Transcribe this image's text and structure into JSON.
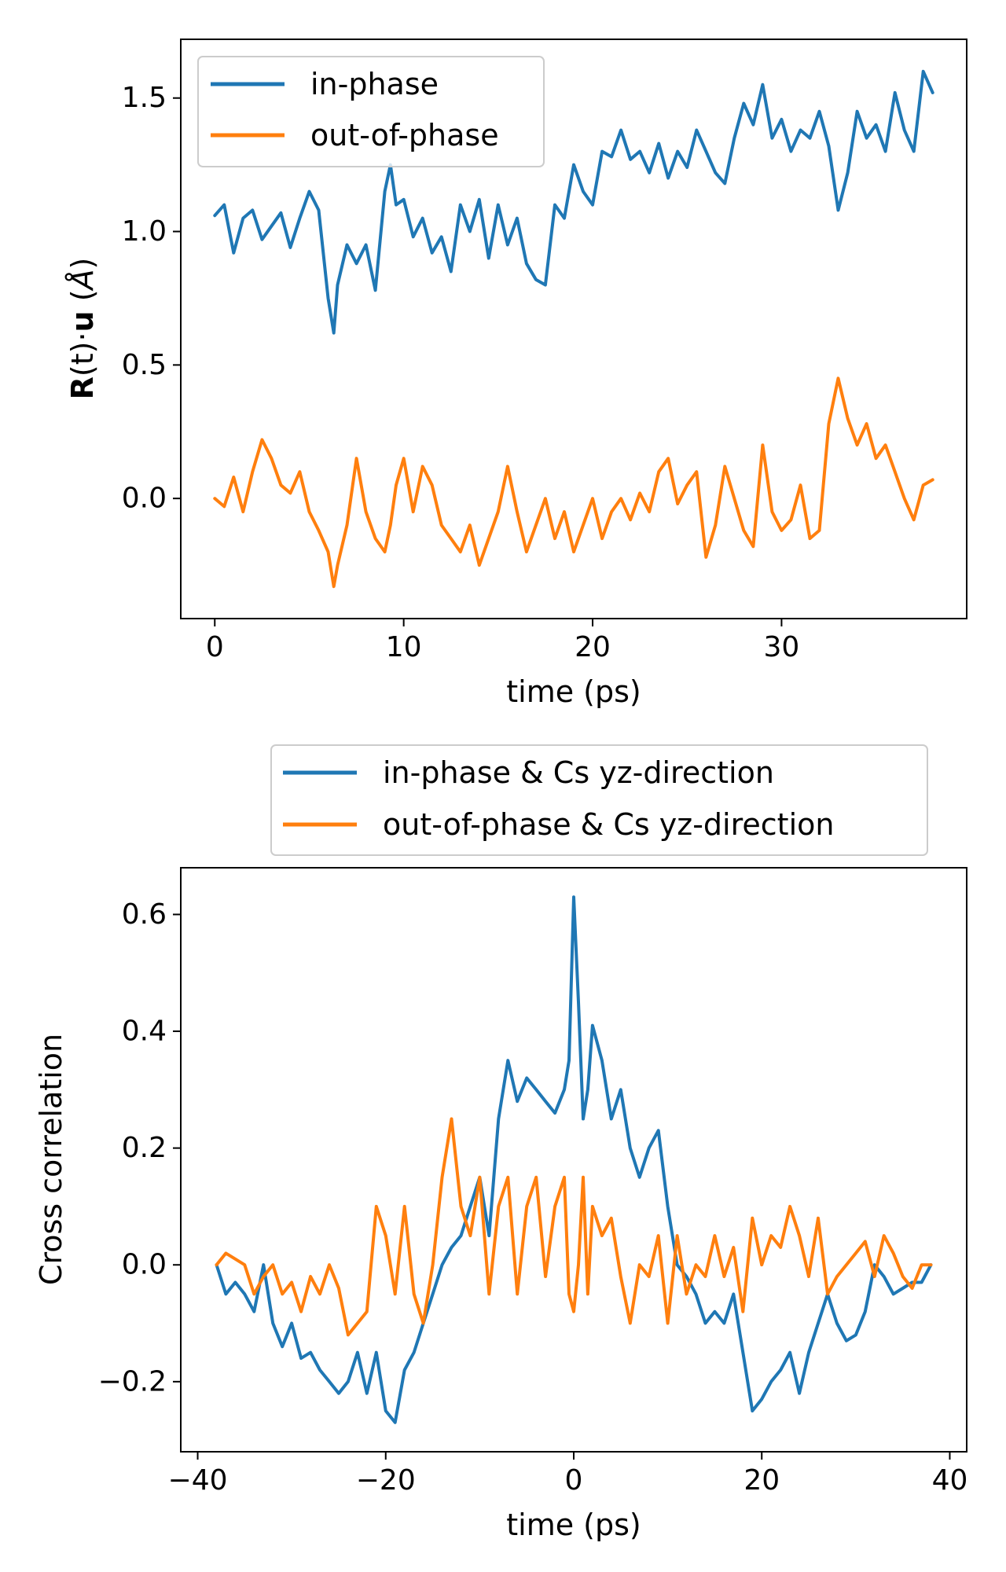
{
  "colors": {
    "in_phase": "#1f77b4",
    "out_of_phase": "#ff7f0e",
    "axes": "#000000",
    "legend_border": "#cccccc"
  },
  "chart_data": [
    {
      "type": "line",
      "title": "",
      "xlabel": "time (ps)",
      "ylabel_parts": [
        "R",
        "(t)·",
        "u",
        " (",
        "Å",
        ")"
      ],
      "xlim": [
        -1.8,
        39.8
      ],
      "ylim": [
        -0.45,
        1.72
      ],
      "xticks": [
        0,
        10,
        20,
        30
      ],
      "xtick_labels": [
        "0",
        "10",
        "20",
        "30"
      ],
      "yticks": [
        0.0,
        0.5,
        1.0,
        1.5
      ],
      "ytick_labels": [
        "0.0",
        "0.5",
        "1.0",
        "1.5"
      ],
      "grid": false,
      "legend_position": "top-left",
      "series": [
        {
          "name": "in-phase",
          "color_key": "in_phase",
          "x": [
            0,
            0.5,
            1,
            1.5,
            2,
            2.5,
            3,
            3.5,
            4,
            4.5,
            5,
            5.5,
            6,
            6.3,
            6.5,
            7,
            7.5,
            8,
            8.5,
            9,
            9.3,
            9.6,
            10,
            10.5,
            11,
            11.5,
            12,
            12.5,
            13,
            13.5,
            14,
            14.5,
            15,
            15.5,
            16,
            16.5,
            17,
            17.5,
            18,
            18.5,
            19,
            19.5,
            20,
            20.5,
            21,
            21.5,
            22,
            22.5,
            23,
            23.5,
            24,
            24.5,
            25,
            25.5,
            26,
            26.5,
            27,
            27.5,
            28,
            28.5,
            29,
            29.5,
            30,
            30.5,
            31,
            31.5,
            32,
            32.5,
            33,
            33.5,
            34,
            34.5,
            35,
            35.5,
            36,
            36.5,
            37,
            37.5,
            38
          ],
          "y": [
            1.06,
            1.1,
            0.92,
            1.05,
            1.08,
            0.97,
            1.02,
            1.07,
            0.94,
            1.05,
            1.15,
            1.08,
            0.75,
            0.62,
            0.8,
            0.95,
            0.88,
            0.95,
            0.78,
            1.15,
            1.25,
            1.1,
            1.12,
            0.98,
            1.05,
            0.92,
            0.98,
            0.85,
            1.1,
            1.0,
            1.12,
            0.9,
            1.1,
            0.95,
            1.05,
            0.88,
            0.82,
            0.8,
            1.1,
            1.05,
            1.25,
            1.15,
            1.1,
            1.3,
            1.28,
            1.38,
            1.27,
            1.3,
            1.22,
            1.33,
            1.2,
            1.3,
            1.24,
            1.38,
            1.3,
            1.22,
            1.18,
            1.35,
            1.48,
            1.4,
            1.55,
            1.35,
            1.42,
            1.3,
            1.38,
            1.35,
            1.45,
            1.32,
            1.08,
            1.22,
            1.45,
            1.35,
            1.4,
            1.3,
            1.52,
            1.38,
            1.3,
            1.6,
            1.52
          ]
        },
        {
          "name": "out-of-phase",
          "color_key": "out_of_phase",
          "x": [
            0,
            0.5,
            1,
            1.5,
            2,
            2.5,
            3,
            3.5,
            4,
            4.5,
            5,
            5.5,
            6,
            6.3,
            6.5,
            7,
            7.5,
            8,
            8.5,
            9,
            9.3,
            9.6,
            10,
            10.5,
            11,
            11.5,
            12,
            12.5,
            13,
            13.5,
            14,
            14.5,
            15,
            15.5,
            16,
            16.5,
            17,
            17.5,
            18,
            18.5,
            19,
            19.5,
            20,
            20.5,
            21,
            21.5,
            22,
            22.5,
            23,
            23.5,
            24,
            24.5,
            25,
            25.5,
            26,
            26.5,
            27,
            27.5,
            28,
            28.5,
            29,
            29.5,
            30,
            30.5,
            31,
            31.5,
            32,
            32.5,
            33,
            33.5,
            34,
            34.5,
            35,
            35.5,
            36,
            36.5,
            37,
            37.5,
            38
          ],
          "y": [
            0.0,
            -0.03,
            0.08,
            -0.05,
            0.1,
            0.22,
            0.15,
            0.05,
            0.02,
            0.1,
            -0.05,
            -0.12,
            -0.2,
            -0.33,
            -0.25,
            -0.1,
            0.15,
            -0.05,
            -0.15,
            -0.2,
            -0.1,
            0.05,
            0.15,
            -0.05,
            0.12,
            0.05,
            -0.1,
            -0.15,
            -0.2,
            -0.1,
            -0.25,
            -0.15,
            -0.05,
            0.12,
            -0.05,
            -0.2,
            -0.1,
            0.0,
            -0.15,
            -0.05,
            -0.2,
            -0.1,
            0.0,
            -0.15,
            -0.05,
            0.0,
            -0.08,
            0.02,
            -0.05,
            0.1,
            0.15,
            -0.02,
            0.05,
            0.1,
            -0.22,
            -0.1,
            0.12,
            0.0,
            -0.12,
            -0.18,
            0.2,
            -0.05,
            -0.12,
            -0.08,
            0.05,
            -0.15,
            -0.12,
            0.28,
            0.45,
            0.3,
            0.2,
            0.28,
            0.15,
            0.2,
            0.1,
            0.0,
            -0.08,
            0.05,
            0.07
          ]
        }
      ]
    },
    {
      "type": "line",
      "title": "",
      "xlabel": "time (ps)",
      "ylabel": "Cross correlation",
      "xlim": [
        -41.8,
        41.8
      ],
      "ylim": [
        -0.32,
        0.68
      ],
      "xticks": [
        -40,
        -20,
        0,
        20,
        40
      ],
      "xtick_labels": [
        "−40",
        "−20",
        "0",
        "20",
        "40"
      ],
      "yticks": [
        -0.2,
        0.0,
        0.2,
        0.4,
        0.6
      ],
      "ytick_labels": [
        "−0.2",
        "0.0",
        "0.2",
        "0.4",
        "0.6"
      ],
      "grid": false,
      "legend_position": "above-right",
      "series": [
        {
          "name": "in-phase & Cs yz-direction",
          "color_key": "in_phase",
          "x": [
            -38,
            -37,
            -36,
            -35,
            -34,
            -33,
            -32,
            -31,
            -30,
            -29,
            -28,
            -27,
            -26,
            -25,
            -24,
            -23,
            -22,
            -21,
            -20,
            -19,
            -18,
            -17,
            -16,
            -15,
            -14,
            -13,
            -12,
            -11,
            -10,
            -9,
            -8,
            -7,
            -6,
            -5,
            -4,
            -3,
            -2,
            -1,
            -0.5,
            0,
            0.5,
            1,
            1.5,
            2,
            3,
            4,
            5,
            6,
            7,
            8,
            9,
            10,
            11,
            12,
            13,
            14,
            15,
            16,
            17,
            18,
            19,
            20,
            21,
            22,
            23,
            24,
            25,
            26,
            27,
            28,
            29,
            30,
            31,
            32,
            33,
            34,
            35,
            36,
            37,
            38
          ],
          "y": [
            0.0,
            -0.05,
            -0.03,
            -0.05,
            -0.08,
            0.0,
            -0.1,
            -0.14,
            -0.1,
            -0.16,
            -0.15,
            -0.18,
            -0.2,
            -0.22,
            -0.2,
            -0.15,
            -0.22,
            -0.15,
            -0.25,
            -0.27,
            -0.18,
            -0.15,
            -0.1,
            -0.05,
            0.0,
            0.03,
            0.05,
            0.1,
            0.15,
            0.05,
            0.25,
            0.35,
            0.28,
            0.32,
            0.3,
            0.28,
            0.26,
            0.3,
            0.35,
            0.63,
            0.45,
            0.25,
            0.3,
            0.41,
            0.35,
            0.25,
            0.3,
            0.2,
            0.15,
            0.2,
            0.23,
            0.1,
            0.0,
            -0.02,
            -0.05,
            -0.1,
            -0.08,
            -0.1,
            -0.05,
            -0.15,
            -0.25,
            -0.23,
            -0.2,
            -0.18,
            -0.15,
            -0.22,
            -0.15,
            -0.1,
            -0.05,
            -0.1,
            -0.13,
            -0.12,
            -0.08,
            0.0,
            -0.02,
            -0.05,
            -0.04,
            -0.03,
            -0.03,
            0.0
          ]
        },
        {
          "name": "out-of-phase & Cs yz-direction",
          "color_key": "out_of_phase",
          "x": [
            -38,
            -37,
            -36,
            -35,
            -34,
            -33,
            -32,
            -31,
            -30,
            -29,
            -28,
            -27,
            -26,
            -25,
            -24,
            -23,
            -22,
            -21,
            -20,
            -19,
            -18,
            -17,
            -16,
            -15,
            -14,
            -13,
            -12,
            -11,
            -10,
            -9,
            -8,
            -7,
            -6,
            -5,
            -4,
            -3,
            -2,
            -1,
            -0.5,
            0,
            0.5,
            1,
            1.5,
            2,
            3,
            4,
            5,
            6,
            7,
            8,
            9,
            10,
            11,
            12,
            13,
            14,
            15,
            16,
            17,
            18,
            19,
            20,
            21,
            22,
            23,
            24,
            25,
            26,
            27,
            28,
            29,
            30,
            31,
            32,
            33,
            34,
            35,
            36,
            37,
            38
          ],
          "y": [
            0.0,
            0.02,
            0.01,
            0.0,
            -0.05,
            -0.02,
            0.0,
            -0.05,
            -0.03,
            -0.08,
            -0.02,
            -0.05,
            0.0,
            -0.04,
            -0.12,
            -0.1,
            -0.08,
            0.1,
            0.05,
            -0.05,
            0.1,
            -0.05,
            -0.1,
            0.0,
            0.15,
            0.25,
            0.1,
            0.05,
            0.15,
            -0.05,
            0.1,
            0.15,
            -0.05,
            0.1,
            0.15,
            -0.02,
            0.1,
            0.15,
            -0.05,
            -0.08,
            0.0,
            0.15,
            -0.05,
            0.1,
            0.05,
            0.08,
            -0.02,
            -0.1,
            0.0,
            -0.02,
            0.05,
            -0.1,
            0.05,
            -0.05,
            0.0,
            -0.02,
            0.05,
            -0.02,
            0.03,
            -0.08,
            0.08,
            0.0,
            0.05,
            0.03,
            0.1,
            0.05,
            -0.02,
            0.08,
            -0.05,
            -0.02,
            0.0,
            0.02,
            0.04,
            -0.02,
            0.05,
            0.02,
            -0.02,
            -0.04,
            0.0,
            0.0
          ]
        }
      ]
    }
  ]
}
